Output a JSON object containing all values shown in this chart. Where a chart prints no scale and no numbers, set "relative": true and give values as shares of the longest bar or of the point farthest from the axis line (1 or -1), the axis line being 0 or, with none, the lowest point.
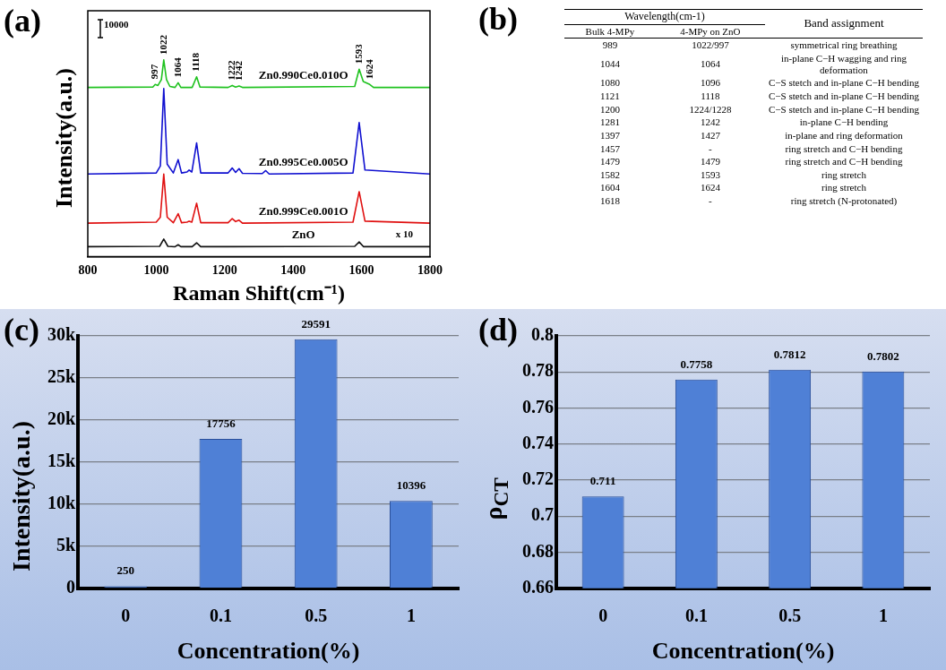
{
  "chart_data": [
    {
      "type": "line",
      "title": "(a)",
      "xlabel": "Raman Shift(cm⁻¹)",
      "ylabel": "Intensity(a.u.)",
      "relative": true,
      "xlim": [
        800,
        1800
      ],
      "xticks": [
        800,
        1000,
        1200,
        1400,
        1600,
        1800
      ],
      "tick_labels": "x",
      "legend": false,
      "grid": false,
      "marker": "none",
      "series": [
        {
          "name": "Zn0.990Ce0.010O",
          "color": "#1fc21f",
          "x": [
            800,
            990,
            997,
            1005,
            1015,
            1022,
            1030,
            1040,
            1055,
            1064,
            1072,
            1105,
            1118,
            1128,
            1210,
            1222,
            1232,
            1242,
            1252,
            1580,
            1593,
            1605,
            1624,
            1635,
            1800
          ],
          "values": [
            0.86,
            0.862,
            0.875,
            0.87,
            0.9,
            1.0,
            0.9,
            0.865,
            0.86,
            0.884,
            0.86,
            0.86,
            0.914,
            0.862,
            0.86,
            0.87,
            0.862,
            0.867,
            0.86,
            0.865,
            0.953,
            0.89,
            0.875,
            0.86,
            0.86
          ]
        },
        {
          "name": "Zn0.995Ce0.005O",
          "color": "#1010d0",
          "x": [
            800,
            1000,
            1012,
            1022,
            1032,
            1050,
            1064,
            1074,
            1090,
            1096,
            1104,
            1118,
            1130,
            1210,
            1222,
            1232,
            1242,
            1252,
            1310,
            1320,
            1330,
            1575,
            1593,
            1610,
            1800
          ],
          "values": [
            0.42,
            0.425,
            0.46,
            0.855,
            0.47,
            0.425,
            0.493,
            0.425,
            0.43,
            0.44,
            0.43,
            0.578,
            0.425,
            0.425,
            0.45,
            0.428,
            0.447,
            0.423,
            0.422,
            0.437,
            0.42,
            0.425,
            0.681,
            0.44,
            0.42
          ]
        },
        {
          "name": "Zn0.999Ce0.001O",
          "color": "#e01010",
          "x": [
            800,
            1000,
            1012,
            1022,
            1032,
            1050,
            1064,
            1074,
            1090,
            1096,
            1104,
            1118,
            1130,
            1210,
            1222,
            1232,
            1242,
            1252,
            1575,
            1593,
            1610,
            1800
          ],
          "values": [
            0.17,
            0.175,
            0.2,
            0.419,
            0.2,
            0.172,
            0.218,
            0.172,
            0.175,
            0.18,
            0.175,
            0.271,
            0.172,
            0.172,
            0.193,
            0.178,
            0.185,
            0.17,
            0.175,
            0.33,
            0.18,
            0.17
          ]
        },
        {
          "name": "ZnO",
          "color": "#111111",
          "x": [
            800,
            1010,
            1022,
            1034,
            1055,
            1064,
            1072,
            1105,
            1118,
            1130,
            1580,
            1593,
            1606,
            1800
          ],
          "values": [
            0.05,
            0.052,
            0.089,
            0.052,
            0.05,
            0.06,
            0.05,
            0.05,
            0.07,
            0.05,
            0.052,
            0.074,
            0.05,
            0.05
          ]
        }
      ],
      "annotations": [
        "10000",
        {
          "text": "997",
          "x": 997,
          "y": 0.875
        },
        {
          "text": "1022",
          "x": 1022,
          "y": 1.0
        },
        {
          "text": "1064",
          "x": 1064,
          "y": 0.884
        },
        {
          "text": "1118",
          "x": 1118,
          "y": 0.914
        },
        {
          "text": "1222",
          "x": 1222,
          "y": 0.87
        },
        {
          "text": "1242",
          "x": 1242,
          "y": 0.867
        },
        {
          "text": "1593",
          "x": 1593,
          "y": 0.953
        },
        {
          "text": "1624",
          "x": 1624,
          "y": 0.875
        },
        {
          "text": "x 10",
          "x": 1725,
          "y": 0.05
        }
      ]
    },
    {
      "type": "other",
      "title": "(b)",
      "annotations": [
        "Wavelength(cm-1)",
        "Band assignment",
        "Bulk 4-MPy",
        "4-MPy on ZnO",
        "989",
        "1022/997",
        "symmetrical ring breathing",
        "1044",
        "1064",
        "in-plane C−H wagging and ring deformation",
        "1080",
        "1096",
        "C−S stetch and in-plane C−H bending",
        "1121",
        "1118",
        "C−S stetch and in-plane C−H bending",
        "1200",
        "1224/1228",
        "C−S stetch and in-plane C−H bending",
        "1281",
        "1242",
        "in-plane C−H bending",
        "1397",
        "1427",
        "in-plane and ring deformation",
        "1457",
        "-",
        "ring stretch and C−H bending",
        "1479",
        "1479",
        "ring stretch and C−H bending",
        "1582",
        "1593",
        "ring stretch",
        "1604",
        "1624",
        "ring stretch",
        "1618",
        "-",
        "ring stretch (N-protonated)"
      ]
    },
    {
      "type": "bar",
      "title": "(c)",
      "xlabel": "Concentration(%)",
      "ylabel": "Intensity(a.u.)",
      "categories": [
        "0",
        "0.1",
        "0.5",
        "1"
      ],
      "values": [
        250,
        17756,
        29591,
        10396
      ],
      "color": "#4f80d6",
      "ylim": [
        0,
        30000
      ],
      "yticks": [
        0,
        {
          "value": 5000,
          "label": "5k"
        },
        {
          "value": 10000,
          "label": "10k"
        },
        {
          "value": 15000,
          "label": "15k"
        },
        {
          "value": 20000,
          "label": "20k"
        },
        {
          "value": 25000,
          "label": "25k"
        },
        {
          "value": 30000,
          "label": "30k"
        }
      ],
      "grid": "y",
      "legend": false,
      "data_labels": true
    },
    {
      "type": "bar",
      "title": "(d)",
      "xlabel": "Concentration(%)",
      "ylabel": "ρ$_{CT}$",
      "categories": [
        "0",
        "0.1",
        "0.5",
        "1"
      ],
      "values": [
        0.711,
        0.7758,
        0.7812,
        0.7802
      ],
      "color": "#4f80d6",
      "ylim": [
        0.66,
        0.8
      ],
      "yticks": [
        0.66,
        0.68,
        0.7,
        0.72,
        0.74,
        0.76,
        0.78,
        0.8
      ],
      "grid": "y",
      "legend": false,
      "data_labels": true
    }
  ]
}
